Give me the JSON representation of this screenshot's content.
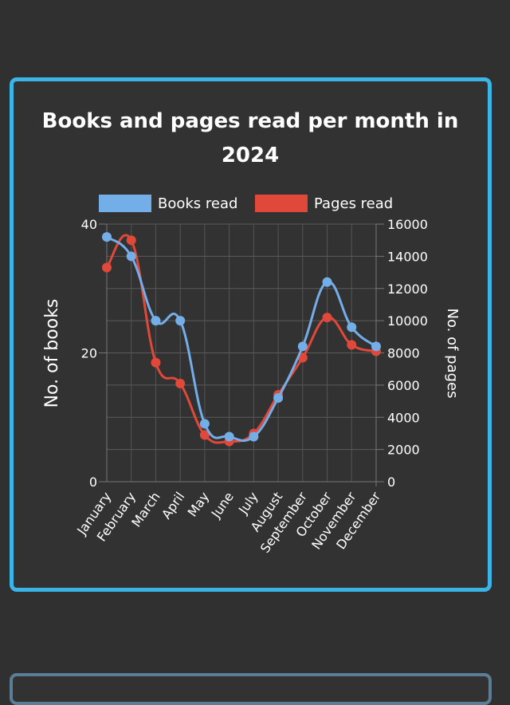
{
  "chart_data": {
    "type": "line",
    "title_lines": [
      "Books and pages read per month in",
      "2024"
    ],
    "categories": [
      "January",
      "February",
      "March",
      "April",
      "May",
      "June",
      "July",
      "August",
      "September",
      "October",
      "November",
      "December"
    ],
    "series": [
      {
        "name": "Books read",
        "axis": "left",
        "color": "#74aee8",
        "values": [
          38,
          35,
          25,
          25,
          9,
          7,
          7,
          13,
          21,
          31,
          24,
          21
        ]
      },
      {
        "name": "Pages read",
        "axis": "right",
        "color": "#e0493a",
        "values": [
          13300,
          15000,
          7400,
          6100,
          2900,
          2500,
          3000,
          5400,
          7700,
          10200,
          8500,
          8100
        ]
      }
    ],
    "ylabel_left": "No. of books",
    "ylabel_right": "No. of pages",
    "ylim_left": [
      0,
      40
    ],
    "ylim_right": [
      0,
      16000
    ],
    "yticks_left": [
      0,
      20,
      40
    ],
    "yticks_right": [
      0,
      2000,
      4000,
      6000,
      8000,
      10000,
      12000,
      14000,
      16000
    ],
    "legend_position": "top",
    "grid": true
  },
  "colors": {
    "card_border": "#3bb4e6",
    "background": "#303030"
  }
}
